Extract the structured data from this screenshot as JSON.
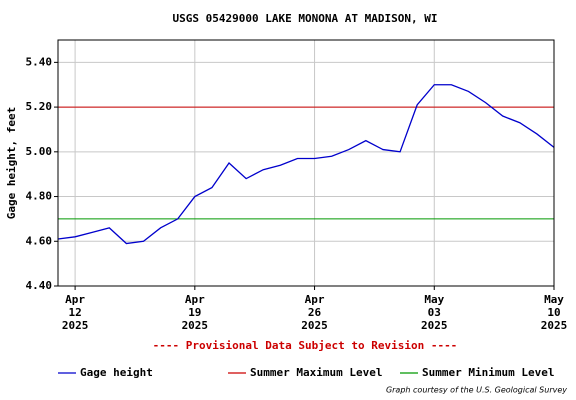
{
  "chart_data": {
    "type": "line",
    "title": "USGS 05429000 LAKE MONONA AT MADISON, WI",
    "y_label": "Gage height, feet",
    "note": "---- Provisional Data Subject to Revision ----",
    "credit": "Graph courtesy of the U.S. Geological Survey",
    "x": [
      "2025-04-11",
      "2025-04-12",
      "2025-04-13",
      "2025-04-14",
      "2025-04-15",
      "2025-04-16",
      "2025-04-17",
      "2025-04-18",
      "2025-04-19",
      "2025-04-20",
      "2025-04-21",
      "2025-04-22",
      "2025-04-23",
      "2025-04-24",
      "2025-04-25",
      "2025-04-26",
      "2025-04-27",
      "2025-04-28",
      "2025-04-29",
      "2025-04-30",
      "2025-05-01",
      "2025-05-02",
      "2025-05-03",
      "2025-05-04",
      "2025-05-05",
      "2025-05-06",
      "2025-05-07",
      "2025-05-08",
      "2025-05-09",
      "2025-05-10"
    ],
    "series": [
      {
        "name": "Gage height",
        "color": "#0000cc",
        "values": [
          4.61,
          4.62,
          4.64,
          4.66,
          4.59,
          4.6,
          4.66,
          4.7,
          4.8,
          4.84,
          4.95,
          4.88,
          4.92,
          4.94,
          4.97,
          4.97,
          4.98,
          5.01,
          5.05,
          5.01,
          5.0,
          5.21,
          5.3,
          5.3,
          5.27,
          5.22,
          5.16,
          5.13,
          5.08,
          5.02
        ]
      }
    ],
    "reference_lines": [
      {
        "name": "Summer Maximum Level",
        "value": 5.2,
        "color": "#cc0000"
      },
      {
        "name": "Summer Minimum Level",
        "value": 4.7,
        "color": "#009900"
      }
    ],
    "xlim": [
      "2025-04-11",
      "2025-05-10"
    ],
    "xticks": [
      {
        "value": "2025-04-12",
        "label": [
          "Apr",
          "12",
          "2025"
        ]
      },
      {
        "value": "2025-04-19",
        "label": [
          "Apr",
          "19",
          "2025"
        ]
      },
      {
        "value": "2025-04-26",
        "label": [
          "Apr",
          "26",
          "2025"
        ]
      },
      {
        "value": "2025-05-03",
        "label": [
          "May",
          "03",
          "2025"
        ]
      },
      {
        "value": "2025-05-10",
        "label": [
          "May",
          "10",
          "2025"
        ]
      }
    ],
    "ylim": [
      4.4,
      5.5
    ],
    "yticks": [
      {
        "value": 4.4,
        "label": "4.40"
      },
      {
        "value": 4.6,
        "label": "4.60"
      },
      {
        "value": 4.8,
        "label": "4.80"
      },
      {
        "value": 5.0,
        "label": "5.00"
      },
      {
        "value": 5.2,
        "label": "5.20"
      },
      {
        "value": 5.4,
        "label": "5.40"
      }
    ],
    "grid": true
  }
}
